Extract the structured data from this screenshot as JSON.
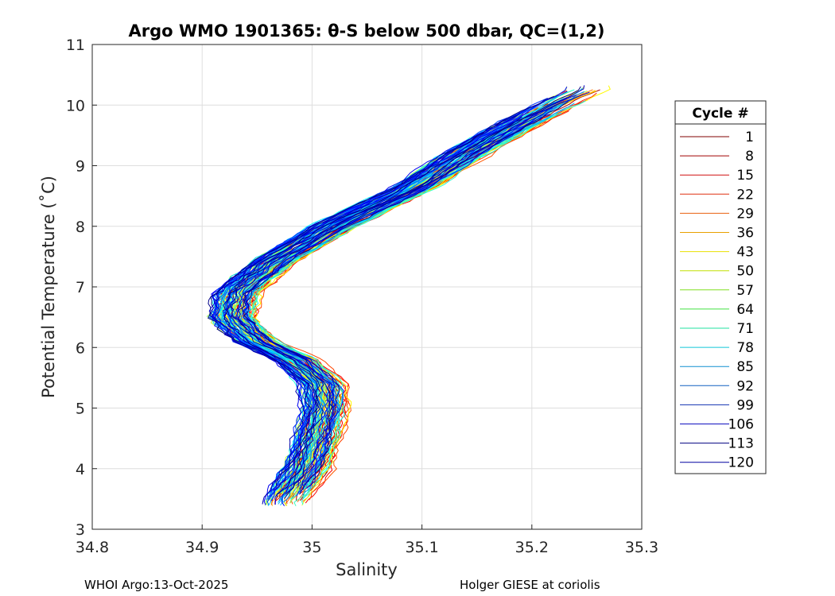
{
  "chart_data": {
    "type": "line",
    "title": "Argo WMO 1901365: θ-S below 500 dbar,  QC=(1,2)",
    "xlabel": "Salinity",
    "ylabel": "Potential Temperature (˚C)",
    "xlim": [
      34.8,
      35.3
    ],
    "ylim": [
      3,
      11
    ],
    "x_ticks": [
      "34.8",
      "34.9",
      "35",
      "35.1",
      "35.2",
      "35.3"
    ],
    "y_ticks": [
      "3",
      "4",
      "5",
      "6",
      "7",
      "8",
      "9",
      "10",
      "11"
    ],
    "grid": true,
    "legend": {
      "title": "Cycle #",
      "placement": "right",
      "entries": [
        {
          "label": "1",
          "color": "#800000"
        },
        {
          "label": "8",
          "color": "#a00000"
        },
        {
          "label": "15",
          "color": "#d01010"
        },
        {
          "label": "22",
          "color": "#e03010"
        },
        {
          "label": "29",
          "color": "#e86010"
        },
        {
          "label": "36",
          "color": "#e8a000"
        },
        {
          "label": "43",
          "color": "#e8e000"
        },
        {
          "label": "50",
          "color": "#c0e000"
        },
        {
          "label": "57",
          "color": "#80e020"
        },
        {
          "label": "64",
          "color": "#40e040"
        },
        {
          "label": "71",
          "color": "#20e0a0"
        },
        {
          "label": "78",
          "color": "#10c8d8"
        },
        {
          "label": "85",
          "color": "#1090d0"
        },
        {
          "label": "92",
          "color": "#1060c0"
        },
        {
          "label": "99",
          "color": "#1030b0"
        },
        {
          "label": "106",
          "color": "#1010c0"
        },
        {
          "label": "113",
          "color": "#000080"
        },
        {
          "label": "120",
          "color": "#0000a0"
        }
      ]
    },
    "reference_profile": [
      {
        "s": 34.975,
        "t": 3.45
      },
      {
        "s": 34.995,
        "t": 4.0
      },
      {
        "s": 35.005,
        "t": 4.5
      },
      {
        "s": 35.012,
        "t": 5.0
      },
      {
        "s": 35.01,
        "t": 5.4
      },
      {
        "s": 34.985,
        "t": 5.8
      },
      {
        "s": 34.95,
        "t": 6.1
      },
      {
        "s": 34.93,
        "t": 6.5
      },
      {
        "s": 34.935,
        "t": 6.9
      },
      {
        "s": 34.965,
        "t": 7.4
      },
      {
        "s": 35.02,
        "t": 8.0
      },
      {
        "s": 35.09,
        "t": 8.6
      },
      {
        "s": 35.15,
        "t": 9.3
      },
      {
        "s": 35.21,
        "t": 9.9
      },
      {
        "s": 35.25,
        "t": 10.25
      }
    ],
    "n_profiles": 120
  },
  "footer": {
    "left": "WHOI Argo:13-Oct-2025",
    "right": "Holger GIESE at coriolis"
  }
}
